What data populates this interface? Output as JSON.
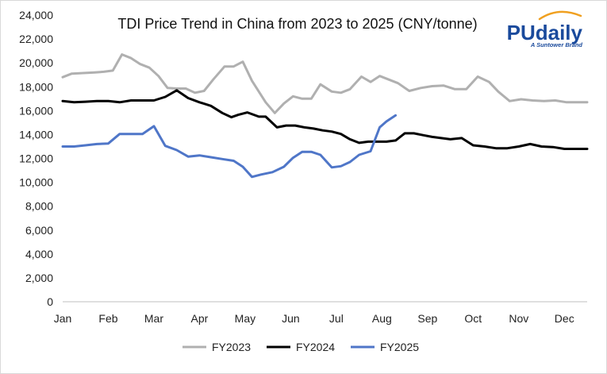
{
  "chart_data": {
    "type": "line",
    "title": "TDI  Price Trend in China from 2023 to 2025 (CNY/tonne)",
    "xlabel": "",
    "ylabel": "",
    "ylim": [
      0,
      24000
    ],
    "yticks": [
      0,
      2000,
      4000,
      6000,
      8000,
      10000,
      12000,
      14000,
      16000,
      18000,
      20000,
      22000,
      24000
    ],
    "ytick_labels": [
      "0",
      "2,000",
      "4,000",
      "6,000",
      "8,000",
      "10,000",
      "12,000",
      "14,000",
      "16,000",
      "18,000",
      "20,000",
      "22,000",
      "24,000"
    ],
    "xlim": [
      0,
      11.5
    ],
    "categories": [
      "Jan",
      "Feb",
      "Mar",
      "Apr",
      "May",
      "Jun",
      "Jul",
      "Aug",
      "Sep",
      "Oct",
      "Nov",
      "Dec"
    ],
    "legend_position": "bottom-center",
    "grid": false,
    "series": [
      {
        "name": "FY2023",
        "color": "#b0b0b0",
        "x": [
          0,
          0.2,
          0.45,
          0.7,
          0.9,
          1.1,
          1.3,
          1.5,
          1.7,
          1.9,
          2.1,
          2.3,
          2.5,
          2.7,
          2.9,
          3.1,
          3.3,
          3.55,
          3.75,
          3.95,
          4.15,
          4.45,
          4.65,
          4.85,
          5.05,
          5.25,
          5.45,
          5.65,
          5.9,
          6.1,
          6.3,
          6.55,
          6.75,
          6.95,
          7.15,
          7.35,
          7.6,
          7.85,
          8.1,
          8.35,
          8.6,
          8.85,
          9.1,
          9.35,
          9.55,
          9.8,
          10.05,
          10.3,
          10.55,
          10.8,
          11.05,
          11.3,
          11.5
        ],
        "values": [
          18800,
          19100,
          19150,
          19200,
          19250,
          19350,
          20700,
          20400,
          19900,
          19600,
          18900,
          17900,
          17850,
          17850,
          17500,
          17650,
          18600,
          19700,
          19700,
          20100,
          18500,
          16700,
          15800,
          16600,
          17200,
          17000,
          17000,
          18200,
          17600,
          17500,
          17800,
          18850,
          18400,
          18900,
          18600,
          18300,
          17650,
          17900,
          18050,
          18100,
          17800,
          17800,
          18850,
          18400,
          17600,
          16800,
          16950,
          16850,
          16800,
          16850,
          16700,
          16700,
          16700
        ]
      },
      {
        "name": "FY2024",
        "color": "#000000",
        "x": [
          0,
          0.25,
          0.5,
          0.75,
          1,
          1.25,
          1.5,
          1.75,
          2,
          2.25,
          2.5,
          2.75,
          3,
          3.25,
          3.5,
          3.7,
          3.85,
          4.05,
          4.3,
          4.45,
          4.7,
          4.9,
          5.1,
          5.3,
          5.5,
          5.7,
          5.9,
          6.1,
          6.3,
          6.5,
          6.7,
          6.9,
          7.1,
          7.3,
          7.5,
          7.7,
          7.9,
          8.1,
          8.3,
          8.5,
          8.75,
          9,
          9.25,
          9.5,
          9.75,
          10,
          10.25,
          10.5,
          10.75,
          11,
          11.25,
          11.5
        ],
        "values": [
          16800,
          16700,
          16750,
          16800,
          16800,
          16700,
          16850,
          16850,
          16850,
          17150,
          17700,
          17050,
          16700,
          16400,
          15800,
          15450,
          15650,
          15850,
          15500,
          15500,
          14600,
          14750,
          14750,
          14600,
          14500,
          14350,
          14250,
          14050,
          13600,
          13300,
          13400,
          13400,
          13400,
          13500,
          14100,
          14100,
          13950,
          13800,
          13700,
          13600,
          13700,
          13100,
          13000,
          12850,
          12850,
          13000,
          13200,
          13000,
          12950,
          12800,
          12800,
          12800
        ]
      },
      {
        "name": "FY2025",
        "color": "#4f76c8",
        "x": [
          0,
          0.25,
          0.5,
          0.75,
          1,
          1.25,
          1.5,
          1.75,
          2,
          2.25,
          2.5,
          2.75,
          3,
          3.25,
          3.5,
          3.75,
          3.95,
          4.15,
          4.35,
          4.6,
          4.85,
          5.05,
          5.25,
          5.45,
          5.65,
          5.9,
          6.1,
          6.3,
          6.5,
          6.75,
          6.95,
          7.1,
          7.3
        ],
        "values": [
          13000,
          13000,
          13100,
          13200,
          13250,
          14050,
          14050,
          14050,
          14700,
          13050,
          12700,
          12150,
          12250,
          12100,
          11950,
          11800,
          11300,
          10450,
          10650,
          10850,
          11300,
          12050,
          12550,
          12550,
          12300,
          11250,
          11350,
          11700,
          12300,
          12600,
          14600,
          15100,
          15600
        ]
      }
    ]
  },
  "logo": {
    "name": "PUdaily",
    "tagline": "A Suntower Brand",
    "color_main": "#1a4a9c",
    "color_arc": "#f0a020"
  }
}
